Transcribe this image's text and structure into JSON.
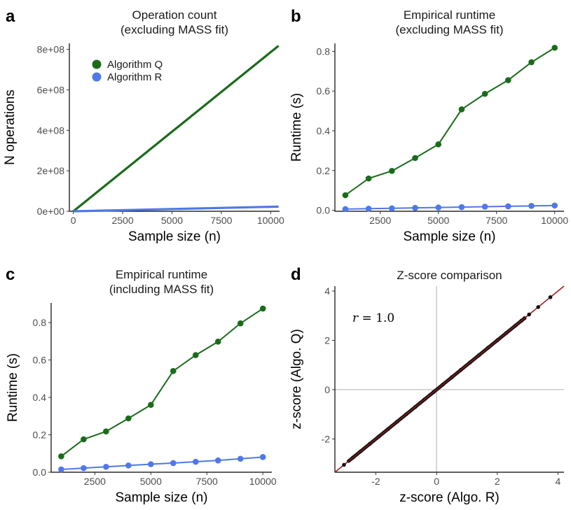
{
  "colors": {
    "algorithm_q": "#1a6b1a",
    "algorithm_r": "#4f78e8",
    "fit_line": "#a01c1c",
    "zero_line": "#c4c4c4"
  },
  "chart_data": [
    {
      "panel": "a",
      "type": "line",
      "title": "Operation count\n(excluding MASS fit)",
      "xlabel": "Sample size (n)",
      "ylabel": "N operations",
      "xlim": [
        -200,
        10450
      ],
      "ylim": [
        0,
        830000000
      ],
      "xticks": [
        0,
        2500,
        5000,
        7500,
        10000
      ],
      "xtick_labels": [
        "0",
        "2500",
        "5000",
        "7500",
        "10000"
      ],
      "yticks": [
        0,
        200000000,
        400000000,
        600000000,
        800000000
      ],
      "ytick_labels": [
        "0e+00",
        "2e+08",
        "4e+08",
        "6e+08",
        "8e+08"
      ],
      "grid": false,
      "legend": {
        "placement": "top-left",
        "entries": [
          "Algorithm Q",
          "Algorithm R"
        ]
      },
      "series": [
        {
          "name": "Algorithm Q",
          "color_key": "algorithm_q",
          "markers": false,
          "x": [
            0,
            10400
          ],
          "y": [
            0,
            818000000
          ]
        },
        {
          "name": "Algorithm R",
          "color_key": "algorithm_r",
          "markers": false,
          "x": [
            0,
            10400
          ],
          "y": [
            0,
            23000000
          ]
        }
      ]
    },
    {
      "panel": "b",
      "type": "line",
      "title": "Empirical runtime\n(excluding MASS fit)",
      "xlabel": "Sample size (n)",
      "ylabel": "Runtime (s)",
      "xlim": [
        550,
        10400
      ],
      "ylim": [
        -0.005,
        0.84
      ],
      "xticks": [
        2500,
        5000,
        7500,
        10000
      ],
      "xtick_labels": [
        "2500",
        "5000",
        "7500",
        "10000"
      ],
      "yticks": [
        0,
        0.2,
        0.4,
        0.6,
        0.8
      ],
      "ytick_labels": [
        "0.0",
        "0.2",
        "0.4",
        "0.6",
        "0.8"
      ],
      "grid": false,
      "series": [
        {
          "name": "Algorithm Q",
          "color_key": "algorithm_q",
          "markers": true,
          "x": [
            1000,
            2000,
            3000,
            4000,
            5000,
            6000,
            7000,
            8000,
            9000,
            10000
          ],
          "y": [
            0.076,
            0.16,
            0.198,
            0.263,
            0.332,
            0.508,
            0.586,
            0.655,
            0.745,
            0.818
          ]
        },
        {
          "name": "Algorithm R",
          "color_key": "algorithm_r",
          "markers": true,
          "x": [
            1000,
            2000,
            3000,
            4000,
            5000,
            6000,
            7000,
            8000,
            9000,
            10000
          ],
          "y": [
            0.006,
            0.008,
            0.01,
            0.012,
            0.014,
            0.016,
            0.018,
            0.02,
            0.022,
            0.024
          ]
        }
      ]
    },
    {
      "panel": "c",
      "type": "line",
      "title": "Empirical runtime\n(including MASS fit)",
      "xlabel": "Sample size (n)",
      "ylabel": "Runtime (s)",
      "xlim": [
        550,
        10400
      ],
      "ylim": [
        0,
        0.905
      ],
      "xticks": [
        2500,
        5000,
        7500,
        10000
      ],
      "xtick_labels": [
        "2500",
        "5000",
        "7500",
        "10000"
      ],
      "yticks": [
        0,
        0.2,
        0.4,
        0.6,
        0.8
      ],
      "ytick_labels": [
        "0.0",
        "0.2",
        "0.4",
        "0.6",
        "0.8"
      ],
      "grid": false,
      "series": [
        {
          "name": "Algorithm Q",
          "color_key": "algorithm_q",
          "markers": true,
          "x": [
            1000,
            2000,
            3000,
            4000,
            5000,
            6000,
            7000,
            8000,
            9000,
            10000
          ],
          "y": [
            0.085,
            0.176,
            0.218,
            0.288,
            0.36,
            0.541,
            0.626,
            0.698,
            0.796,
            0.875
          ]
        },
        {
          "name": "Algorithm R",
          "color_key": "algorithm_r",
          "markers": true,
          "x": [
            1000,
            2000,
            3000,
            4000,
            5000,
            6000,
            7000,
            8000,
            9000,
            10000
          ],
          "y": [
            0.015,
            0.022,
            0.029,
            0.036,
            0.043,
            0.049,
            0.056,
            0.063,
            0.072,
            0.081
          ]
        }
      ]
    },
    {
      "panel": "d",
      "type": "scatter",
      "title": "Z-score comparison",
      "xlabel": "z-score (Algo. R)",
      "ylabel": "z-score (Algo. Q)",
      "xlim": [
        -3.35,
        4.2
      ],
      "ylim": [
        -3.35,
        4.2
      ],
      "xticks": [
        -2,
        0,
        2,
        4
      ],
      "xtick_labels": [
        "-2",
        "0",
        "2",
        "4"
      ],
      "yticks": [
        -2,
        0,
        2,
        4
      ],
      "ytick_labels": [
        "-2",
        "0",
        "2",
        "4"
      ],
      "grid": false,
      "reference_lines": {
        "x": 0,
        "y": 0
      },
      "fit_line": {
        "slope": 1,
        "intercept": 0,
        "color_key": "fit_line"
      },
      "annotation": {
        "variable": "r",
        "text": " = 1.0"
      },
      "points_z": [
        -3.05,
        -2.75,
        -2.5,
        -2.2,
        -1.9,
        -1.6,
        -1.3,
        -1.0,
        -0.7,
        -0.4,
        -0.1,
        0.2,
        0.5,
        0.8,
        1.1,
        1.4,
        1.7,
        2.0,
        2.3,
        2.6,
        2.8,
        2.9,
        3.05,
        3.35,
        3.75
      ]
    }
  ]
}
